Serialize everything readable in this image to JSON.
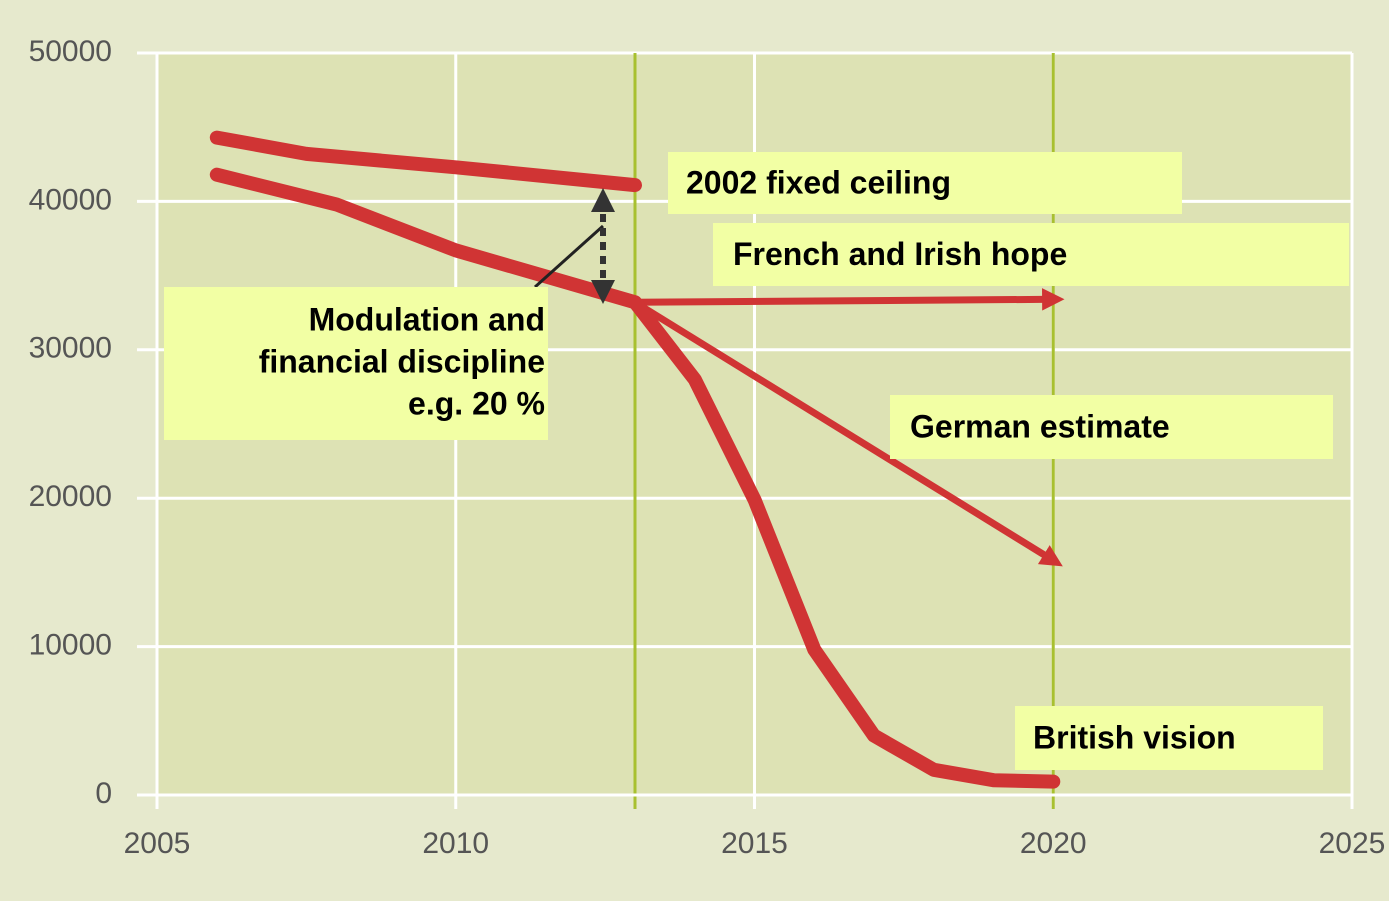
{
  "chart_data": {
    "type": "line",
    "xlim": [
      2005,
      2025
    ],
    "xticks": [
      2005,
      2010,
      2015,
      2020,
      2025
    ],
    "ylim": [
      0,
      50000
    ],
    "yticks": [
      0,
      10000,
      20000,
      30000,
      40000,
      50000
    ],
    "grid": true,
    "vlines": [
      2013,
      2020
    ],
    "vline_color": "#a8c030",
    "series": [
      {
        "name": "2002 fixed ceiling",
        "color": "#d03434",
        "x": [
          2006,
          2007.5,
          2010,
          2013
        ],
        "values": [
          44300,
          43200,
          42300,
          41100
        ]
      },
      {
        "color": "#d03434",
        "x": [
          2006,
          2008,
          2010,
          2013
        ],
        "values": [
          41800,
          39800,
          36700,
          33200
        ]
      },
      {
        "name": "French and Irish hope",
        "color": "#d03434",
        "arrow": true,
        "x": [
          2013,
          2020
        ],
        "values": [
          33200,
          33400
        ]
      },
      {
        "name": "German estimate",
        "color": "#d03434",
        "arrow": true,
        "x": [
          2013,
          2020
        ],
        "values": [
          33200,
          15800
        ]
      },
      {
        "name": "British vision",
        "color": "#d03434",
        "x": [
          2013,
          2014,
          2015,
          2016,
          2017,
          2018,
          2019,
          2020
        ],
        "values": [
          33200,
          28000,
          19900,
          9800,
          4000,
          1700,
          1000,
          900
        ]
      }
    ],
    "annotation": [
      "Modulation and",
      "financial discipline",
      "e.g. 20 %"
    ]
  }
}
